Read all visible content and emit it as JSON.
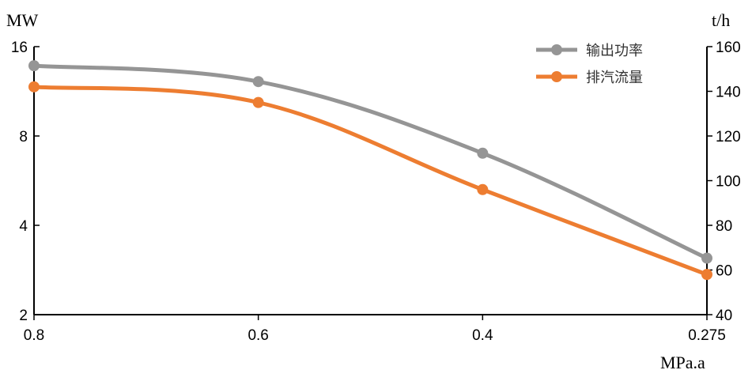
{
  "chart_data": {
    "type": "line",
    "x_categories": [
      "0.8",
      "0.6",
      "0.4",
      "0.275"
    ],
    "xlabel": "MPa.a",
    "y_left": {
      "label": "MW",
      "scale": "log2",
      "range": [
        2,
        16
      ],
      "ticks": [
        2,
        4,
        8,
        16
      ]
    },
    "y_right": {
      "label": "t/h",
      "scale": "linear",
      "range": [
        40,
        160
      ],
      "ticks": [
        40,
        60,
        80,
        100,
        120,
        140,
        160
      ]
    },
    "series": [
      {
        "name": "输出功率",
        "axis": "left",
        "color": "#959595",
        "values": [
          13.8,
          12.2,
          7.0,
          3.1
        ]
      },
      {
        "name": "排汽流量",
        "axis": "right",
        "color": "#ED7D31",
        "values": [
          142,
          135,
          96,
          58
        ]
      }
    ],
    "legend_position": "top-right",
    "grid": false
  }
}
